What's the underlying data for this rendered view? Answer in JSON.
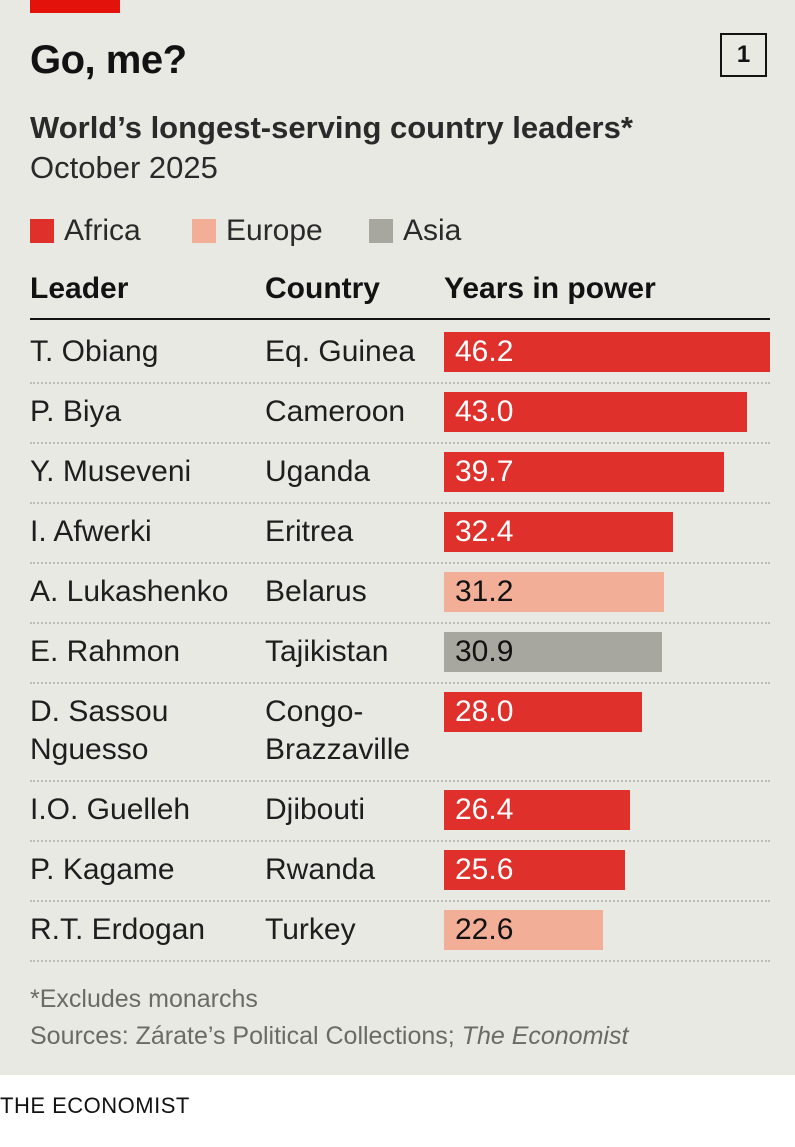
{
  "headline": "Go, me?",
  "chart_number": "1",
  "colors": {
    "Africa": "#e0302b",
    "Europe": "#f2ae96",
    "Asia": "#a8a79f",
    "brand_red": "#e3120b",
    "background": "#e9e9e3"
  },
  "chart_data": {
    "type": "bar",
    "orientation": "horizontal",
    "title": "World’s longest-serving country leaders*",
    "subtitle": "October 2025",
    "legend": [
      "Africa",
      "Europe",
      "Asia"
    ],
    "legend_placement": "top-left",
    "columns": {
      "leader": "Leader",
      "country": "Country",
      "value": "Years in power"
    },
    "rows": [
      {
        "leader": [
          "T. Obiang"
        ],
        "country": [
          "Eq. Guinea"
        ],
        "region": "Africa",
        "value": 46.2,
        "label": "46.2"
      },
      {
        "leader": [
          "P. Biya"
        ],
        "country": [
          "Cameroon"
        ],
        "region": "Africa",
        "value": 43.0,
        "label": "43.0"
      },
      {
        "leader": [
          "Y. Museveni"
        ],
        "country": [
          "Uganda"
        ],
        "region": "Africa",
        "value": 39.7,
        "label": "39.7"
      },
      {
        "leader": [
          "I. Afwerki"
        ],
        "country": [
          "Eritrea"
        ],
        "region": "Africa",
        "value": 32.4,
        "label": "32.4"
      },
      {
        "leader": [
          "A. Lukashenko"
        ],
        "country": [
          "Belarus"
        ],
        "region": "Europe",
        "value": 31.2,
        "label": "31.2"
      },
      {
        "leader": [
          "E. Rahmon"
        ],
        "country": [
          "Tajikistan"
        ],
        "region": "Asia",
        "value": 30.9,
        "label": "30.9"
      },
      {
        "leader": [
          "D. Sassou",
          "Nguesso"
        ],
        "country": [
          "Congo-",
          "Brazzaville"
        ],
        "region": "Africa",
        "value": 28.0,
        "label": "28.0"
      },
      {
        "leader": [
          "I.O. Guelleh"
        ],
        "country": [
          "Djibouti"
        ],
        "region": "Africa",
        "value": 26.4,
        "label": "26.4"
      },
      {
        "leader": [
          "P. Kagame"
        ],
        "country": [
          "Rwanda"
        ],
        "region": "Africa",
        "value": 25.6,
        "label": "25.6"
      },
      {
        "leader": [
          "R.T. Erdogan"
        ],
        "country": [
          "Turkey"
        ],
        "region": "Europe",
        "value": 22.6,
        "label": "22.6"
      }
    ],
    "grid": false
  },
  "footnote": "*Excludes monarchs",
  "sources_prefix": "Sources: Zárate’s Political Collections; ",
  "sources_italic": "The Economist",
  "brand": "THE ECONOMIST"
}
